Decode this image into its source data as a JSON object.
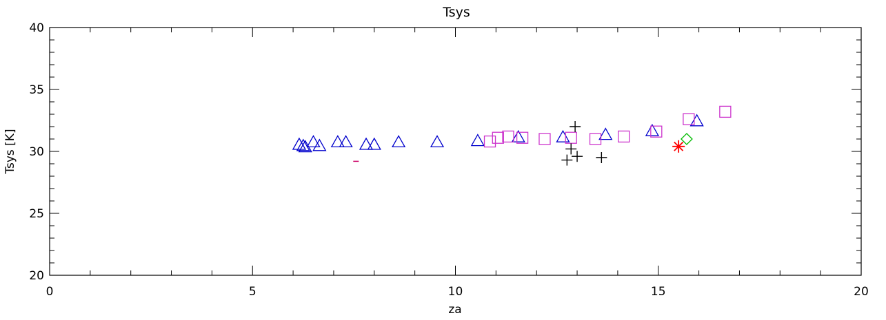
{
  "chart_data": {
    "type": "scatter",
    "title": "Tsys",
    "xlabel": "za",
    "ylabel": "Tsys [K]",
    "xlim": [
      0,
      20
    ],
    "ylim": [
      20,
      40
    ],
    "xticks": [
      0,
      5,
      10,
      15,
      20
    ],
    "yticks": [
      20,
      25,
      30,
      35,
      40
    ],
    "grid": false,
    "series": [
      {
        "marker": "triangle",
        "color": "#0000cc",
        "points": [
          [
            6.15,
            30.5
          ],
          [
            6.25,
            30.4
          ],
          [
            6.3,
            30.3
          ],
          [
            6.5,
            30.7
          ],
          [
            6.65,
            30.4
          ],
          [
            7.1,
            30.7
          ],
          [
            7.3,
            30.7
          ],
          [
            7.8,
            30.5
          ],
          [
            8.0,
            30.5
          ],
          [
            8.6,
            30.7
          ],
          [
            9.55,
            30.7
          ],
          [
            10.55,
            30.8
          ],
          [
            11.55,
            31.1
          ],
          [
            12.65,
            31.1
          ],
          [
            13.7,
            31.3
          ],
          [
            14.85,
            31.6
          ],
          [
            15.95,
            32.4
          ]
        ]
      },
      {
        "marker": "square",
        "color": "#cc33cc",
        "points": [
          [
            10.85,
            30.8
          ],
          [
            11.05,
            31.1
          ],
          [
            11.3,
            31.2
          ],
          [
            11.65,
            31.1
          ],
          [
            12.2,
            31.0
          ],
          [
            12.85,
            31.1
          ],
          [
            13.45,
            31.0
          ],
          [
            14.15,
            31.2
          ],
          [
            14.95,
            31.6
          ],
          [
            15.75,
            32.6
          ],
          [
            16.65,
            33.2
          ]
        ]
      },
      {
        "marker": "dash",
        "color": "#cc0066",
        "points": [
          [
            7.55,
            29.2
          ]
        ]
      },
      {
        "marker": "plus",
        "color": "#000000",
        "points": [
          [
            12.95,
            32.0
          ],
          [
            12.85,
            30.2
          ],
          [
            12.75,
            29.3
          ],
          [
            13.0,
            29.6
          ],
          [
            13.6,
            29.5
          ]
        ]
      },
      {
        "marker": "diamond",
        "color": "#00bb00",
        "points": [
          [
            15.7,
            31.0
          ]
        ]
      },
      {
        "marker": "asterisk",
        "color": "#ff0000",
        "points": [
          [
            15.5,
            30.4
          ]
        ]
      }
    ]
  }
}
